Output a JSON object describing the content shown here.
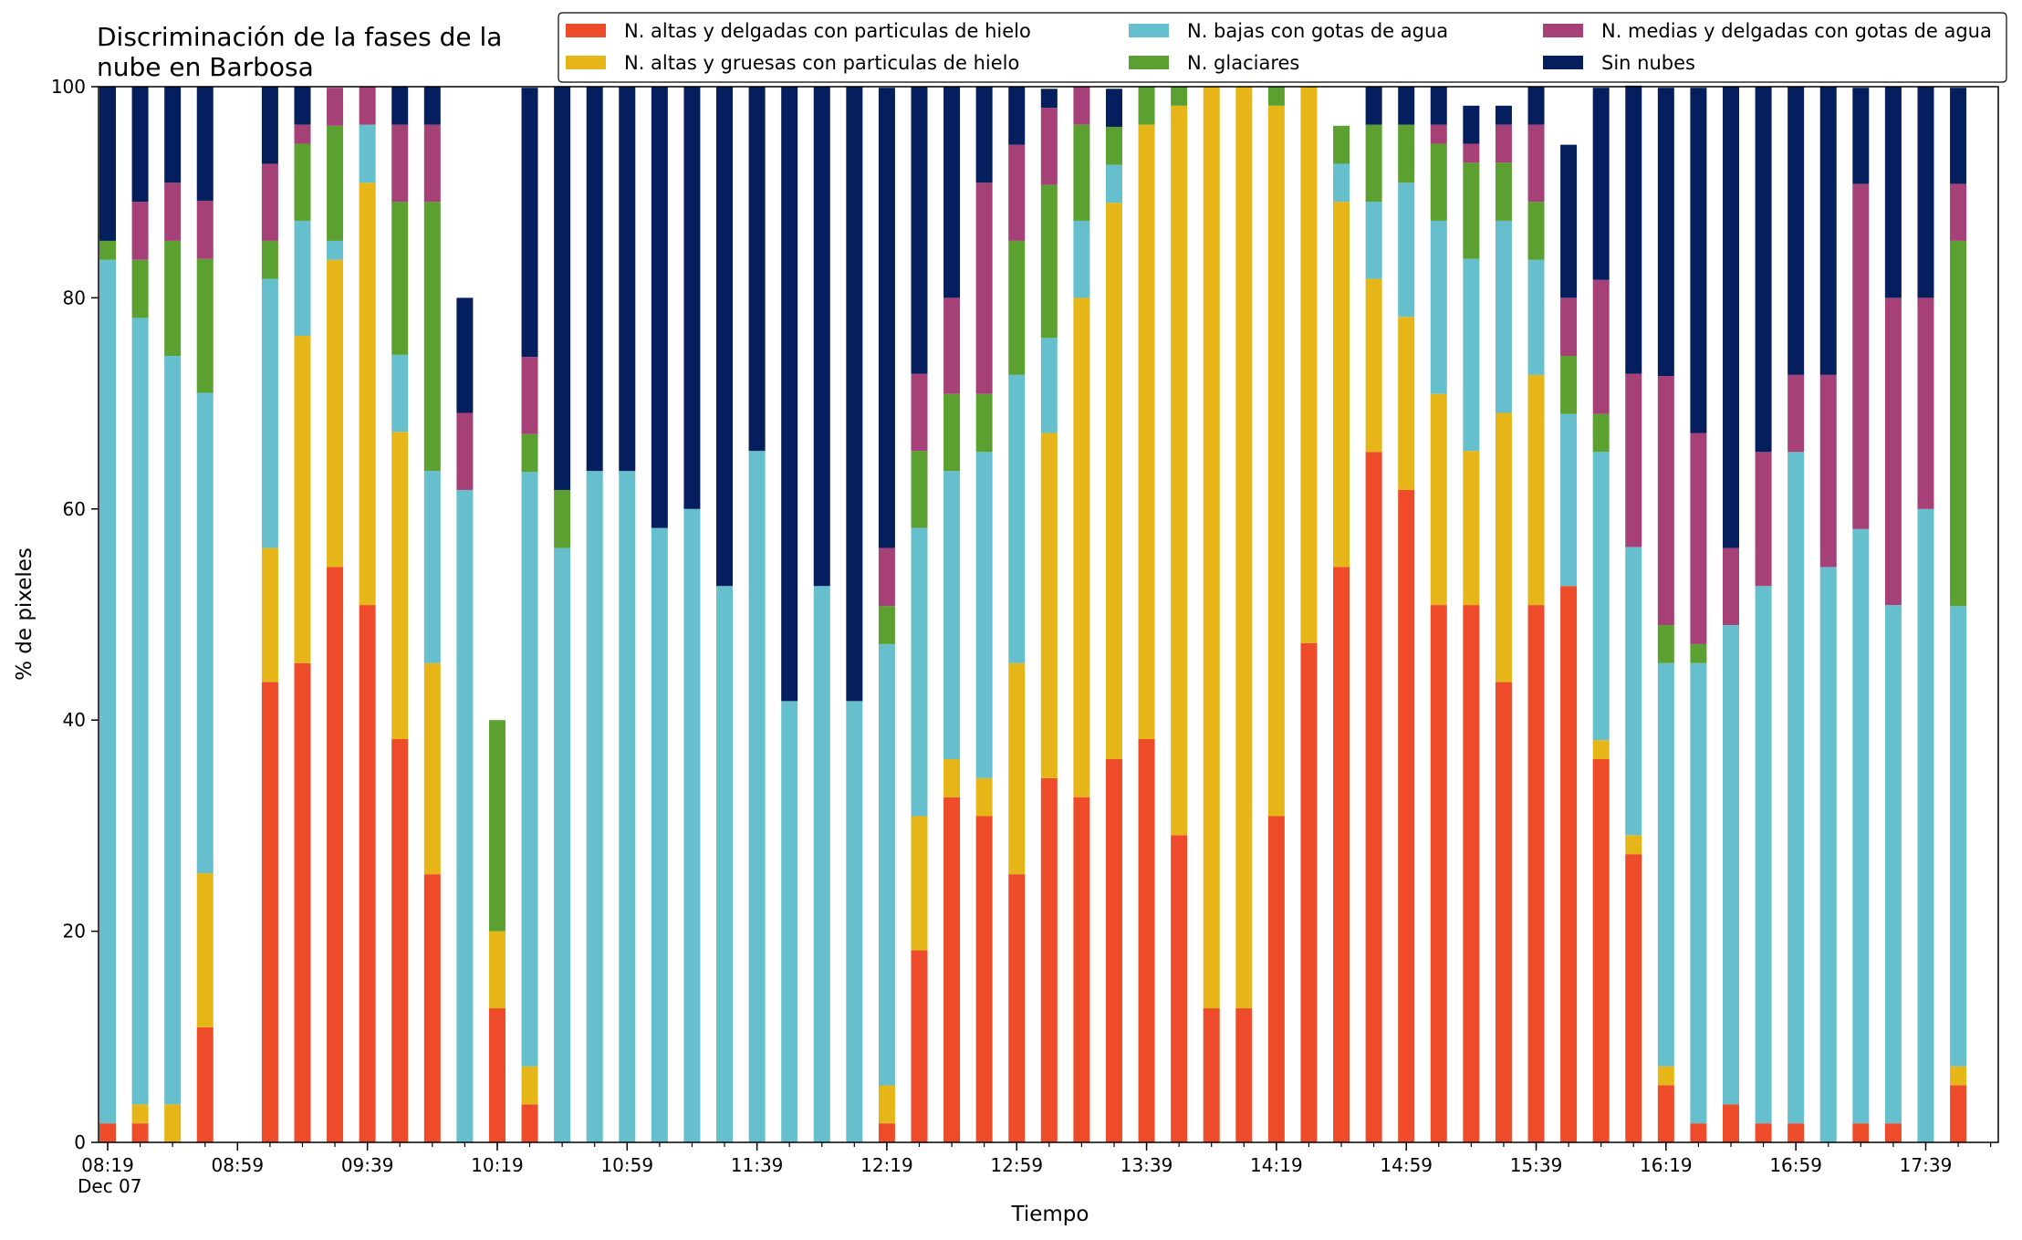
{
  "chart_data": {
    "type": "bar",
    "stacked": true,
    "title": "Discriminación de la fases de la\nnube en Barbosa",
    "xlabel": "Tiempo",
    "ylabel": "% de pixeles",
    "ylim": [
      0,
      100
    ],
    "yticks": [
      0,
      20,
      40,
      60,
      80,
      100
    ],
    "grid": false,
    "legend": {
      "placement": "top-right",
      "columns": 3
    },
    "x_tick_labels": [
      "08:19\nDec 07",
      "08:59",
      "09:39",
      "10:19",
      "10:59",
      "11:39",
      "12:19",
      "12:59",
      "13:39",
      "14:19",
      "14:59",
      "15:39",
      "16:19",
      "16:59",
      "17:39"
    ],
    "x_tick_positions_minutes": [
      499,
      539,
      579,
      619,
      659,
      699,
      739,
      779,
      819,
      859,
      899,
      939,
      979,
      1019,
      1059
    ],
    "bar_interval_minutes": 10,
    "x_minutes": [
      499,
      509,
      519,
      529,
      539,
      549,
      559,
      569,
      579,
      589,
      599,
      609,
      619,
      629,
      639,
      649,
      659,
      669,
      679,
      689,
      699,
      709,
      719,
      729,
      739,
      749,
      759,
      769,
      779,
      789,
      799,
      809,
      819,
      829,
      839,
      849,
      859,
      869,
      879,
      889,
      899,
      909,
      919,
      929,
      939,
      949,
      959,
      969,
      979,
      989,
      999,
      1009,
      1019,
      1029,
      1039,
      1049,
      1059,
      1069,
      1079
    ],
    "series": [
      {
        "name": "N. altas y delgadas con particulas de hielo",
        "color": "#ee4b2b",
        "values": [
          1.8,
          1.8,
          0,
          10.9,
          0,
          43.6,
          45.4,
          54.5,
          50.9,
          38.2,
          25.4,
          0,
          12.7,
          3.6,
          0,
          0,
          0,
          0,
          0,
          0,
          0,
          0,
          0,
          0,
          1.8,
          18.2,
          32.7,
          30.9,
          25.4,
          34.5,
          32.7,
          36.3,
          38.2,
          29.1,
          12.7,
          12.7,
          30.9,
          47.3,
          54.5,
          65.4,
          61.8,
          50.9,
          50.9,
          43.6,
          50.9,
          52.7,
          36.3,
          27.3,
          5.4,
          1.8,
          3.6,
          1.8,
          1.8,
          0,
          1.8,
          1.8,
          0,
          5.4,
          0
        ]
      },
      {
        "name": "N. altas y gruesas con particulas de hielo",
        "color": "#e6b619",
        "values": [
          0,
          1.8,
          3.6,
          14.6,
          0,
          12.7,
          31.0,
          29.1,
          40.0,
          29.1,
          20.0,
          0,
          7.3,
          3.6,
          0,
          0,
          0,
          0,
          0,
          0,
          0,
          0,
          0,
          0,
          3.6,
          12.7,
          3.6,
          3.6,
          20.0,
          32.7,
          47.3,
          52.7,
          58.2,
          69.1,
          87.3,
          87.3,
          67.3,
          52.7,
          34.6,
          16.4,
          16.4,
          20.0,
          14.6,
          25.5,
          21.8,
          0,
          1.8,
          1.8,
          1.8,
          0,
          0,
          0,
          0,
          0,
          0,
          0,
          0,
          1.8,
          0
        ]
      },
      {
        "name": "N. bajas con gotas de agua",
        "color": "#66bfcc",
        "values": [
          81.8,
          74.5,
          70.9,
          45.5,
          0,
          25.5,
          10.9,
          1.8,
          5.5,
          7.3,
          18.2,
          61.8,
          0,
          56.3,
          56.3,
          63.6,
          63.6,
          58.2,
          60.0,
          52.7,
          65.5,
          41.8,
          52.7,
          41.8,
          41.8,
          27.3,
          27.3,
          30.9,
          27.3,
          9.0,
          7.3,
          3.6,
          0,
          0,
          0,
          0,
          0,
          0,
          3.6,
          7.3,
          12.7,
          16.4,
          18.2,
          18.2,
          10.9,
          16.3,
          27.3,
          27.3,
          38.2,
          43.6,
          45.4,
          50.9,
          63.6,
          54.5,
          56.3,
          49.1,
          60.0,
          43.6,
          0
        ]
      },
      {
        "name": "N. glaciares",
        "color": "#5ba030",
        "values": [
          1.8,
          5.5,
          10.9,
          12.7,
          0,
          3.6,
          7.3,
          10.9,
          0,
          14.5,
          25.5,
          0,
          20.0,
          3.6,
          5.5,
          0,
          0,
          0,
          0,
          0,
          0,
          0,
          0,
          0,
          3.6,
          7.3,
          7.3,
          5.5,
          12.7,
          14.5,
          9.1,
          3.6,
          3.6,
          1.8,
          0,
          0,
          1.8,
          0,
          3.6,
          7.3,
          5.5,
          7.3,
          9.1,
          5.5,
          5.5,
          5.5,
          3.6,
          0,
          3.6,
          1.8,
          0,
          0,
          0,
          0,
          0,
          0,
          0,
          34.6,
          0
        ]
      },
      {
        "name": "N. medias y delgadas con gotas de agua",
        "color": "#a64178",
        "values": [
          0,
          5.5,
          5.5,
          5.5,
          0,
          7.3,
          1.8,
          3.6,
          3.6,
          7.3,
          7.3,
          7.3,
          0,
          7.3,
          0,
          0,
          0,
          0,
          0,
          0,
          0,
          0,
          0,
          0,
          5.5,
          7.3,
          9.1,
          20.0,
          9.1,
          7.3,
          3.6,
          0,
          0,
          0,
          0,
          0,
          0,
          0,
          0,
          0,
          0,
          1.8,
          1.8,
          3.6,
          7.3,
          5.5,
          12.7,
          16.4,
          23.6,
          20.0,
          7.3,
          12.7,
          7.3,
          18.2,
          32.7,
          29.1,
          20.0,
          5.4,
          0
        ]
      },
      {
        "name": "Sin nubes",
        "color": "#051f5e",
        "values": [
          14.6,
          10.9,
          9.1,
          10.8,
          0,
          7.3,
          3.6,
          0,
          0,
          3.6,
          3.6,
          10.9,
          0,
          25.5,
          38.2,
          36.4,
          36.4,
          41.8,
          40.0,
          47.3,
          34.5,
          58.2,
          47.3,
          58.2,
          43.6,
          27.2,
          20.0,
          9.1,
          5.5,
          1.8,
          0,
          3.6,
          0,
          0,
          0,
          0,
          0,
          0,
          0,
          3.6,
          3.6,
          3.6,
          3.6,
          1.8,
          3.6,
          14.5,
          18.2,
          27.3,
          27.3,
          32.7,
          43.7,
          34.6,
          27.3,
          27.3,
          9.1,
          20.0,
          20.0,
          9.1,
          0
        ]
      }
    ]
  }
}
